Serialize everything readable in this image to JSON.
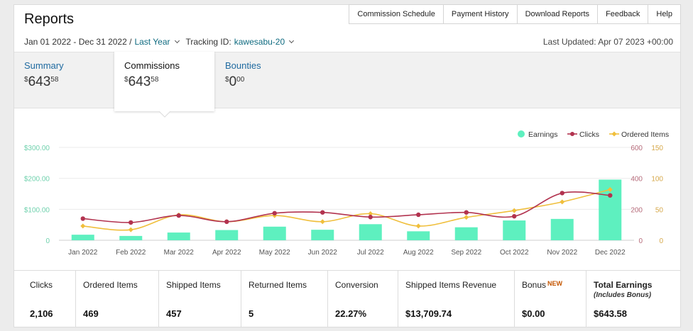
{
  "page": {
    "title": "Reports"
  },
  "topnav": [
    "Commission Schedule",
    "Payment History",
    "Download Reports",
    "Feedback",
    "Help"
  ],
  "filters": {
    "date_range": "Jan 01 2022 - Dec 31 2022 /",
    "period": "Last Year",
    "tracking_label": "Tracking ID:",
    "tracking_id": "kawesabu-20",
    "last_updated": "Last Updated: Apr 07 2023 +00:00"
  },
  "tabs": [
    {
      "label": "Summary",
      "currency": "$",
      "whole": "643",
      "cents": "58"
    },
    {
      "label": "Commissions",
      "currency": "$",
      "whole": "643",
      "cents": "58"
    },
    {
      "label": "Bounties",
      "currency": "$",
      "whole": "0",
      "cents": "00"
    }
  ],
  "colors": {
    "earnings": "#5ef0bf",
    "clicks": "#b2334f",
    "ordered": "#f0bf3c",
    "link": "#1f6aa0"
  },
  "chart_data": {
    "type": "bar",
    "categories": [
      "Jan 2022",
      "Feb 2022",
      "Mar 2022",
      "Apr 2022",
      "May 2022",
      "Jun 2022",
      "Jul 2022",
      "Aug 2022",
      "Sep 2022",
      "Oct 2022",
      "Nov 2022",
      "Dec 2022"
    ],
    "series": [
      {
        "name": "Earnings",
        "type": "bar",
        "axis": "left",
        "values": [
          18,
          14,
          25,
          33,
          44,
          34,
          52,
          29,
          42,
          64,
          69,
          196
        ]
      },
      {
        "name": "Clicks",
        "type": "line",
        "axis": "right1",
        "values": [
          140,
          115,
          160,
          120,
          175,
          180,
          150,
          165,
          180,
          155,
          305,
          290
        ]
      },
      {
        "name": "Ordered Items",
        "type": "line",
        "axis": "right2",
        "values": [
          23,
          17,
          41,
          30,
          40,
          30,
          43,
          23,
          37,
          48,
          62,
          82
        ]
      }
    ],
    "yaxis_left": {
      "ticks": [
        "$300.00",
        "$200.00",
        "$100.00",
        "0"
      ],
      "range": [
        0,
        300
      ]
    },
    "yaxis_right1": {
      "ticks": [
        "600",
        "400",
        "200",
        "0"
      ],
      "range": [
        0,
        600
      ]
    },
    "yaxis_right2": {
      "ticks": [
        "150",
        "100",
        "50",
        "0"
      ],
      "range": [
        0,
        150
      ]
    },
    "legend": [
      "Earnings",
      "Clicks",
      "Ordered Items"
    ],
    "legend_position": "top-right",
    "grid": true
  },
  "stats": [
    {
      "label": "Clicks",
      "value": "2,106"
    },
    {
      "label": "Ordered Items",
      "value": "469"
    },
    {
      "label": "Shipped Items",
      "value": "457"
    },
    {
      "label": "Returned Items",
      "value": "5"
    },
    {
      "label": "Conversion",
      "value": "22.27%"
    },
    {
      "label": "Shipped Items Revenue",
      "value": "$13,709.74"
    },
    {
      "label": "Bonus",
      "badge": "NEW",
      "value": "$0.00"
    },
    {
      "label": "Total Earnings",
      "sub": "(Includes Bonus)",
      "value": "$643.58"
    }
  ]
}
